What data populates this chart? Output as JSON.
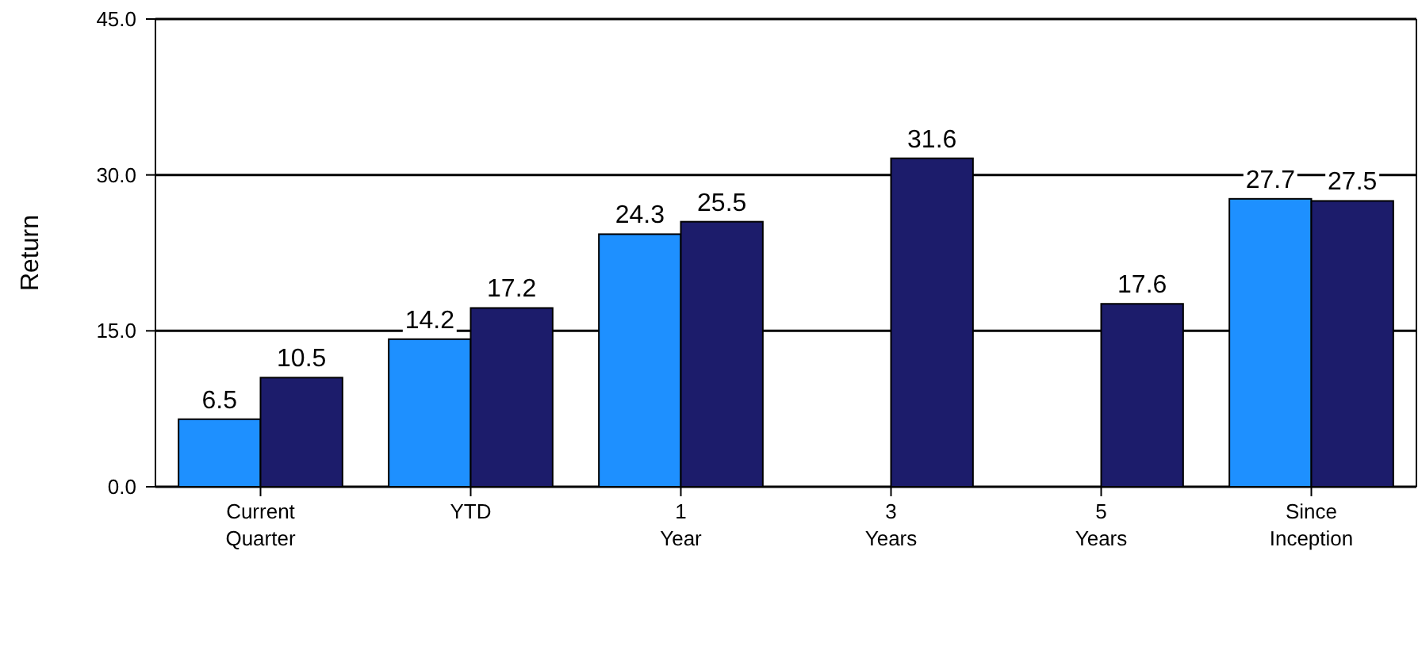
{
  "chart_data": {
    "type": "bar",
    "ylabel": "Return",
    "categories": [
      "Current Quarter",
      "YTD",
      "1 Year",
      "3 Years",
      "5 Years",
      "Since Inception"
    ],
    "series": [
      {
        "color": "#1e90ff",
        "values": [
          6.5,
          14.2,
          24.3,
          null,
          null,
          27.7
        ]
      },
      {
        "color": "#1c1c6b",
        "values": [
          10.5,
          17.2,
          25.5,
          31.6,
          17.6,
          27.5
        ]
      }
    ],
    "ylim": [
      0,
      45
    ],
    "yticks": [
      {
        "value": 0,
        "label": "0.0"
      },
      {
        "value": 15,
        "label": "15.0"
      },
      {
        "value": 30,
        "label": "30.0"
      },
      {
        "value": 45,
        "label": "45.0"
      }
    ],
    "grid": "y",
    "data_labels": true
  }
}
